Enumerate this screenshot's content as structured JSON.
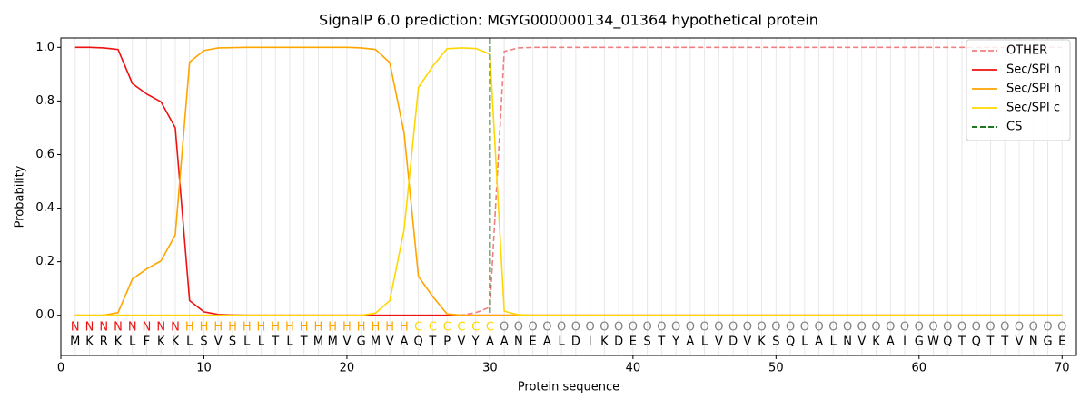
{
  "chart_data": {
    "type": "line",
    "title": "SignalP 6.0 prediction: MGYG000000134_01364 hypothetical protein",
    "x_label": "Protein sequence",
    "y_label": "Probability",
    "xlim": [
      0,
      71
    ],
    "ylim": [
      -0.15,
      1.035
    ],
    "xticks": [
      0,
      10,
      20,
      30,
      40,
      50,
      60,
      70
    ],
    "yticks": [
      {
        "value": 0,
        "label": "0.0"
      },
      0.2,
      0.4,
      0.6,
      0.8,
      {
        "value": 1,
        "label": "1.0"
      }
    ],
    "legend": "upper right",
    "x": [
      1,
      2,
      3,
      4,
      5,
      6,
      7,
      8,
      9,
      10,
      11,
      12,
      13,
      14,
      15,
      16,
      17,
      18,
      19,
      20,
      21,
      22,
      23,
      24,
      25,
      26,
      27,
      28,
      29,
      30,
      31,
      32,
      33,
      34,
      35,
      36,
      37,
      38,
      39,
      40,
      41,
      42,
      43,
      44,
      45,
      46,
      47,
      48,
      49,
      50,
      51,
      52,
      53,
      54,
      55,
      56,
      57,
      58,
      59,
      60,
      61,
      62,
      63,
      64,
      65,
      66,
      67,
      68,
      69,
      70
    ],
    "sequence": [
      "M",
      "K",
      "R",
      "K",
      "L",
      "F",
      "K",
      "K",
      "L",
      "S",
      "V",
      "S",
      "L",
      "L",
      "T",
      "L",
      "T",
      "M",
      "M",
      "V",
      "G",
      "M",
      "V",
      "A",
      "Q",
      "T",
      "P",
      "V",
      "Y",
      "A",
      "A",
      "N",
      "E",
      "A",
      "L",
      "D",
      "I",
      "K",
      "D",
      "E",
      "S",
      "T",
      "Y",
      "A",
      "L",
      "V",
      "D",
      "V",
      "K",
      "S",
      "Q",
      "L",
      "A",
      "L",
      "N",
      "V",
      "K",
      "A",
      "I",
      "G",
      "W",
      "Q",
      "T",
      "Q",
      "T",
      "T",
      "V",
      "N",
      "G",
      "E"
    ],
    "labels": [
      "N",
      "N",
      "N",
      "N",
      "N",
      "N",
      "N",
      "N",
      "H",
      "H",
      "H",
      "H",
      "H",
      "H",
      "H",
      "H",
      "H",
      "H",
      "H",
      "H",
      "H",
      "H",
      "H",
      "H",
      "C",
      "C",
      "C",
      "C",
      "C",
      "C",
      "O",
      "O",
      "O",
      "O",
      "O",
      "O",
      "O",
      "O",
      "O",
      "O",
      "O",
      "O",
      "O",
      "O",
      "O",
      "O",
      "O",
      "O",
      "O",
      "O",
      "O",
      "O",
      "O",
      "O",
      "O",
      "O",
      "O",
      "O",
      "O",
      "O",
      "O",
      "O",
      "O",
      "O",
      "O",
      "O",
      "O",
      "O",
      "O",
      "O"
    ],
    "label_colors": {
      "N": "#ee1111",
      "H": "#ffa500",
      "C": "#ffd700",
      "O": "#808080"
    },
    "series": [
      {
        "name": "OTHER",
        "color": "#f08080",
        "dashed": true,
        "values": [
          0,
          0,
          0,
          0,
          0,
          0,
          0,
          0,
          0,
          0,
          0,
          0,
          0,
          0,
          0,
          0,
          0,
          0,
          0,
          0,
          0,
          0,
          0,
          0,
          0,
          0,
          0,
          0,
          0.01,
          0.03,
          0.985,
          0.998,
          1,
          1,
          1,
          1,
          1,
          1,
          1,
          1,
          1,
          1,
          1,
          1,
          1,
          1,
          1,
          1,
          1,
          1,
          1,
          1,
          1,
          1,
          1,
          1,
          1,
          1,
          1,
          1,
          1,
          1,
          1,
          1,
          1,
          1,
          1,
          1,
          1,
          1
        ]
      },
      {
        "name": "Sec/SPI n",
        "color": "#ee1111",
        "values": [
          1,
          1,
          0.998,
          0.992,
          0.865,
          0.826,
          0.797,
          0.7,
          0.055,
          0.013,
          0.003,
          0.001,
          0,
          0,
          0,
          0,
          0,
          0,
          0,
          0,
          0,
          0,
          0,
          0,
          0,
          0,
          0,
          0,
          0,
          0,
          0,
          0,
          0,
          0,
          0,
          0,
          0,
          0,
          0,
          0,
          0,
          0,
          0,
          0,
          0,
          0,
          0,
          0,
          0,
          0,
          0,
          0,
          0,
          0,
          0,
          0,
          0,
          0,
          0,
          0,
          0,
          0,
          0,
          0,
          0,
          0,
          0,
          0,
          0,
          0
        ]
      },
      {
        "name": "Sec/SPI h",
        "color": "#ffa500",
        "values": [
          0,
          0,
          0,
          0.01,
          0.135,
          0.173,
          0.203,
          0.3,
          0.945,
          0.988,
          0.998,
          0.999,
          1,
          1,
          1,
          1,
          1,
          1,
          1,
          1,
          0.998,
          0.992,
          0.943,
          0.68,
          0.145,
          0.07,
          0.005,
          0,
          0,
          0,
          0,
          0,
          0,
          0,
          0,
          0,
          0,
          0,
          0,
          0,
          0,
          0,
          0,
          0,
          0,
          0,
          0,
          0,
          0,
          0,
          0,
          0,
          0,
          0,
          0,
          0,
          0,
          0,
          0,
          0,
          0,
          0,
          0,
          0,
          0,
          0,
          0,
          0,
          0,
          0
        ]
      },
      {
        "name": "Sec/SPI c",
        "color": "#ffd700",
        "values": [
          0,
          0,
          0,
          0,
          0,
          0,
          0,
          0,
          0,
          0,
          0,
          0,
          0,
          0,
          0,
          0,
          0,
          0,
          0,
          0,
          0,
          0.008,
          0.055,
          0.32,
          0.85,
          0.93,
          0.995,
          0.998,
          0.996,
          0.975,
          0.015,
          0.002,
          0,
          0,
          0,
          0,
          0,
          0,
          0,
          0,
          0,
          0,
          0,
          0,
          0,
          0,
          0,
          0,
          0,
          0,
          0,
          0,
          0,
          0,
          0,
          0,
          0,
          0,
          0,
          0,
          0,
          0,
          0,
          0,
          0,
          0,
          0,
          0,
          0,
          0
        ]
      }
    ],
    "cs": {
      "name": "CS",
      "x": 30,
      "color": "#006400"
    }
  }
}
